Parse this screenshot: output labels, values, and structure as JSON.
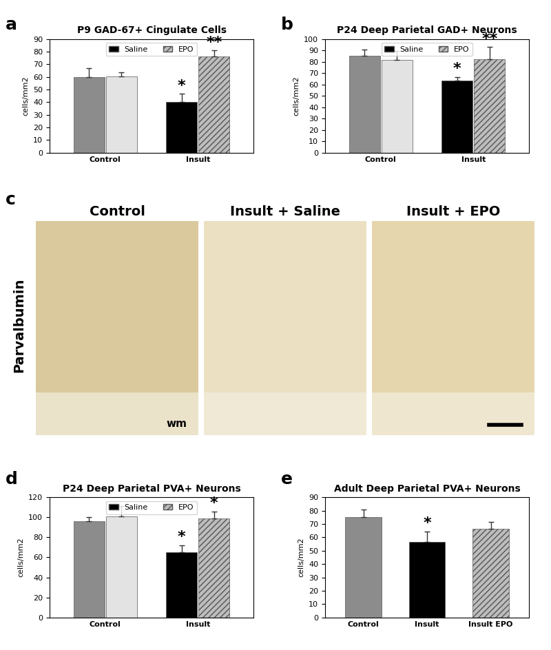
{
  "chart_data": [
    {
      "panel": "a",
      "type": "bar",
      "title": "P9 GAD-67+ Cingulate Cells",
      "y_label": "cells/mm2",
      "categories": [
        "Control",
        "Insult"
      ],
      "series": [
        {
          "name": "Saline",
          "colors": [
            "#8c8c8c",
            "#000000"
          ],
          "values": [
            60,
            40.5
          ],
          "errors": [
            7,
            6
          ]
        },
        {
          "name": "EPO",
          "colors": [
            "#e3e3e3",
            "#bdbdbd"
          ],
          "values": [
            60.5,
            76
          ],
          "errors": [
            3,
            5
          ]
        }
      ],
      "annotations": [
        {
          "text": "*",
          "series": "Saline",
          "category": "Insult"
        },
        {
          "text": "**",
          "series": "EPO",
          "category": "Insult"
        }
      ],
      "ylim": [
        0,
        90
      ],
      "yticks": [
        0,
        10,
        20,
        30,
        40,
        50,
        60,
        70,
        80,
        90
      ],
      "legend": "upper center"
    },
    {
      "panel": "b",
      "type": "bar",
      "title": "P24 Deep Parietal GAD+ Neurons",
      "y_label": "cells/mm2",
      "categories": [
        "Control",
        "Insult"
      ],
      "series": [
        {
          "name": "Saline",
          "colors": [
            "#8c8c8c",
            "#000000"
          ],
          "values": [
            85.5,
            63.5
          ],
          "errors": [
            5,
            3
          ]
        },
        {
          "name": "EPO",
          "colors": [
            "#e3e3e3",
            "#bdbdbd"
          ],
          "values": [
            81.5,
            82
          ],
          "errors": [
            8,
            11
          ]
        }
      ],
      "annotations": [
        {
          "text": "*",
          "series": "Saline",
          "category": "Insult"
        },
        {
          "text": "**",
          "series": "EPO",
          "category": "Insult"
        }
      ],
      "ylim": [
        0,
        100
      ],
      "yticks": [
        0,
        10,
        20,
        30,
        40,
        50,
        60,
        70,
        80,
        90,
        100
      ],
      "legend": "upper center"
    },
    {
      "panel": "d",
      "type": "bar",
      "title": "P24 Deep Parietal PVA+ Neurons",
      "y_label": "cells/mm2",
      "categories": [
        "Control",
        "Insult"
      ],
      "series": [
        {
          "name": "Saline",
          "colors": [
            "#8c8c8c",
            "#000000"
          ],
          "values": [
            96,
            65
          ],
          "errors": [
            4,
            7
          ]
        },
        {
          "name": "EPO",
          "colors": [
            "#e3e3e3",
            "#bdbdbd"
          ],
          "values": [
            101,
            99
          ],
          "errors": [
            10,
            7
          ]
        }
      ],
      "annotations": [
        {
          "text": "*",
          "series": "Saline",
          "category": "Insult"
        },
        {
          "text": "*",
          "series": "EPO",
          "category": "Insult"
        }
      ],
      "ylim": [
        0,
        120
      ],
      "yticks": [
        0,
        20,
        40,
        60,
        80,
        100,
        120
      ],
      "legend": "upper center"
    },
    {
      "panel": "e",
      "type": "bar",
      "title": "Adult Deep Parietal PVA+ Neurons",
      "y_label": "cells/mm2",
      "categories": [
        "Control",
        "Insult",
        "Insult EPO"
      ],
      "series": [
        {
          "colors": [
            "#8c8c8c",
            "#000000",
            "#bdbdbd"
          ],
          "values": [
            75,
            56.5,
            66.5
          ],
          "errors": [
            6,
            8,
            5
          ]
        }
      ],
      "annotations": [
        {
          "text": "*",
          "series": 0,
          "category": "Insult"
        }
      ],
      "ylim": [
        0,
        90
      ],
      "yticks": [
        0,
        10,
        20,
        30,
        40,
        50,
        60,
        70,
        80,
        90
      ]
    }
  ],
  "image_panel": {
    "panel": "c",
    "stain": "Parvalbumin",
    "images": [
      "Control",
      "Insult + Saline",
      "Insult + EPO"
    ],
    "region_label": "wm"
  }
}
